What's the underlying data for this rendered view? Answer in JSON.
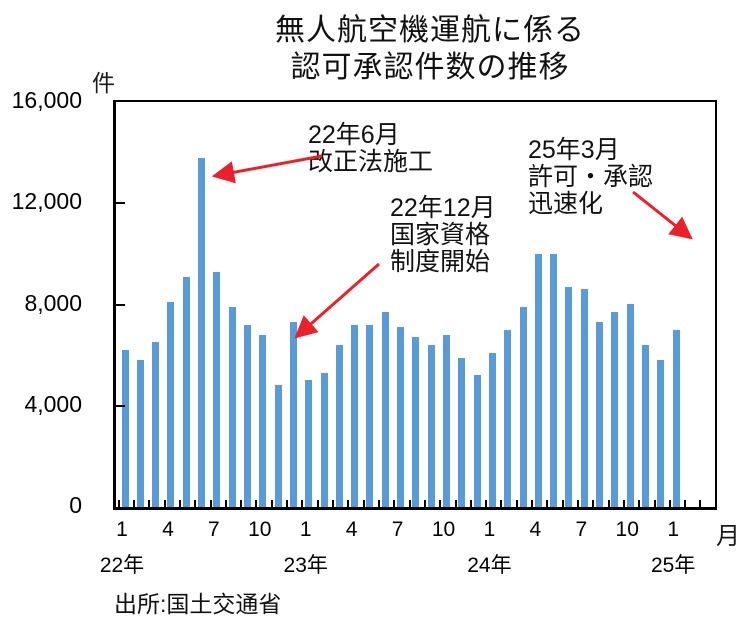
{
  "title": {
    "line1": "無人航空機運航に係る",
    "line2": "認可承認件数の推移"
  },
  "y_axis": {
    "unit": "件",
    "ticks": [
      {
        "v": 16000,
        "t": "16,000"
      },
      {
        "v": 12000,
        "t": "12,000"
      },
      {
        "v": 8000,
        "t": "8,000"
      },
      {
        "v": 4000,
        "t": "4,000"
      },
      {
        "v": 0,
        "t": "0"
      }
    ]
  },
  "x_axis": {
    "month_suffix": "月",
    "month_ticks": [
      {
        "i": 0,
        "t": "1"
      },
      {
        "i": 3,
        "t": "4"
      },
      {
        "i": 6,
        "t": "7"
      },
      {
        "i": 9,
        "t": "10"
      },
      {
        "i": 12,
        "t": "1"
      },
      {
        "i": 15,
        "t": "4"
      },
      {
        "i": 18,
        "t": "7"
      },
      {
        "i": 21,
        "t": "10"
      },
      {
        "i": 24,
        "t": "1"
      },
      {
        "i": 27,
        "t": "4"
      },
      {
        "i": 30,
        "t": "7"
      },
      {
        "i": 33,
        "t": "10"
      },
      {
        "i": 36,
        "t": "1"
      }
    ],
    "year_ticks": [
      {
        "i": 0,
        "t": "22年"
      },
      {
        "i": 12,
        "t": "23年"
      },
      {
        "i": 24,
        "t": "24年"
      },
      {
        "i": 36,
        "t": "25年"
      }
    ]
  },
  "annotations": [
    {
      "lines": [
        "22年6月",
        "改正法施工"
      ]
    },
    {
      "lines": [
        "22年12月",
        "国家資格",
        "制度開始"
      ]
    },
    {
      "lines": [
        "25年3月",
        "許可・承認",
        "迅速化"
      ]
    }
  ],
  "source": "出所:国土交通省",
  "colors": {
    "bar": "#5B9BD5",
    "arrow": "#E8212B",
    "axis": "#000000"
  },
  "chart_data": {
    "type": "bar",
    "title": "無人航空機運航に係る認可承認件数の推移",
    "ylabel": "件",
    "xlabel": "月",
    "ylim": [
      0,
      16000
    ],
    "grid": false,
    "legend": "none",
    "x": [
      "22年1月",
      "22年2月",
      "22年3月",
      "22年4月",
      "22年5月",
      "22年6月",
      "22年7月",
      "22年8月",
      "22年9月",
      "22年10月",
      "22年11月",
      "22年12月",
      "23年1月",
      "23年2月",
      "23年3月",
      "23年4月",
      "23年5月",
      "23年6月",
      "23年7月",
      "23年8月",
      "23年9月",
      "23年10月",
      "23年11月",
      "23年12月",
      "24年1月",
      "24年2月",
      "24年3月",
      "24年4月",
      "24年5月",
      "24年6月",
      "24年7月",
      "24年8月",
      "24年9月",
      "24年10月",
      "24年11月",
      "24年12月",
      "25年1月"
    ],
    "values": [
      6200,
      5800,
      6500,
      8100,
      9100,
      13800,
      9300,
      7900,
      7200,
      6800,
      4800,
      7300,
      5000,
      5300,
      6400,
      7200,
      7200,
      7700,
      7100,
      6700,
      6400,
      6800,
      5900,
      5200,
      6100,
      7000,
      7900,
      10000,
      10000,
      8700,
      8600,
      7300,
      7700,
      8000,
      6400,
      5800,
      7000
    ]
  }
}
